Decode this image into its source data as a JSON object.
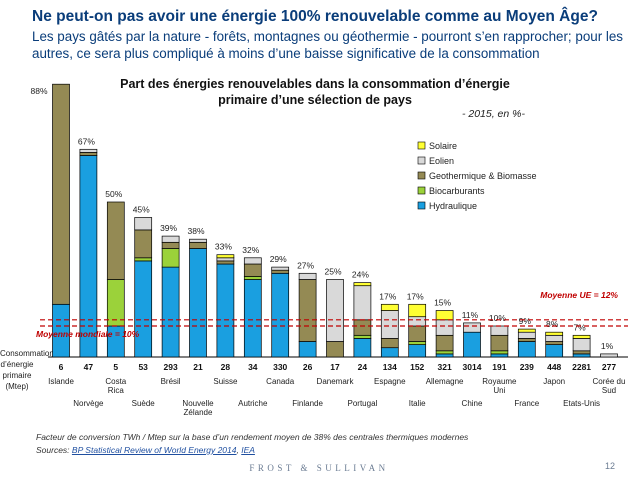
{
  "header": {
    "title": "Ne peut-on pas avoir une énergie 100% renouvelable comme au Moyen Âge?",
    "subtitle": "Les pays gâtés par la nature - forêts, montagnes ou géothermie - pourront s’en rapprocher; pour les autres, ce sera plus compliqué à moins d’une baisse significative de la consommation"
  },
  "colors": {
    "Hydraulique": "#1a9fe0",
    "Biocarburants": "#9bd23a",
    "Geothermique & Biomasse": "#948a54",
    "Eolien": "#d9d9d9",
    "Solaire": "#ffff33",
    "stroke": "#000000",
    "ref_line": "#c00000",
    "title_blue": "#0a3d7a"
  },
  "chart_data": {
    "type": "bar",
    "stacked": true,
    "title": "Part des énergies renouvelables dans la consommation d’énergie primaire d’une sélection de pays",
    "subtitle": "- 2015, en %-",
    "y_axis_title": "Consommation d’énergie primaire (Mtep)",
    "ylim": [
      0,
      90
    ],
    "legend_position": "top-right",
    "categories": [
      "Islande",
      "Norvège",
      "Costa Rica",
      "Suède",
      "Brésil",
      "Nouvelle Zélande",
      "Suisse",
      "Autriche",
      "Canada",
      "Finlande",
      "Danemark",
      "Portugal",
      "Espagne",
      "Italie",
      "Allemagne",
      "Chine",
      "Royaume Uni",
      "France",
      "Japon",
      "Etats-Unis",
      "Corée du Sud"
    ],
    "consumption_mtep": [
      "6",
      "47",
      "5",
      "53",
      "293",
      "21",
      "28",
      "34",
      "330",
      "26",
      "17",
      "24",
      "134",
      "152",
      "321",
      "3014",
      "191",
      "239",
      "448",
      "2281",
      "277"
    ],
    "totals": [
      88,
      67,
      50,
      45,
      39,
      38,
      33,
      32,
      29,
      27,
      25,
      24,
      17,
      17,
      15,
      11,
      10,
      9,
      8,
      7,
      1
    ],
    "total_labels": [
      "88%",
      "67%",
      "50%",
      "45%",
      "39%",
      "38%",
      "33%",
      "32%",
      "29%",
      "27%",
      "25%",
      "24%",
      "17%",
      "17%",
      "15%",
      "11%",
      "10%",
      "9%",
      "8%",
      "7%",
      "1%"
    ],
    "series": [
      {
        "name": "Hydraulique",
        "values": [
          17,
          65,
          10,
          31,
          29,
          35,
          30,
          25,
          27,
          5,
          0,
          6,
          3,
          4,
          1,
          8,
          1,
          5,
          4,
          1,
          0
        ]
      },
      {
        "name": "Biocarburants",
        "values": [
          0,
          0,
          15,
          1,
          6,
          0,
          0,
          1,
          0,
          0,
          0,
          1,
          0,
          1,
          1,
          0,
          1,
          0,
          0,
          0,
          0
        ]
      },
      {
        "name": "Geothermique & Biomasse",
        "values": [
          71,
          1,
          25,
          9,
          2,
          2,
          1,
          4,
          1,
          20,
          5,
          5,
          3,
          5,
          5,
          0,
          5,
          1,
          1,
          1,
          0
        ]
      },
      {
        "name": "Eolien",
        "values": [
          0,
          1,
          0,
          4,
          2,
          1,
          1,
          2,
          1,
          2,
          20,
          11,
          9,
          3,
          5,
          3,
          3,
          2,
          2,
          4,
          1
        ]
      },
      {
        "name": "Solaire",
        "values": [
          0,
          0,
          0,
          0,
          0,
          0,
          1,
          0,
          0,
          0,
          0,
          1,
          2,
          4,
          3,
          0,
          0,
          1,
          1,
          1,
          0
        ]
      }
    ],
    "legend_order": [
      "Solaire",
      "Eolien",
      "Geothermique & Biomasse",
      "Biocarburants",
      "Hydraulique"
    ],
    "reference_lines": [
      {
        "label": "Moyenne mondiale = 10%",
        "value": 10
      },
      {
        "label": "Moyenne UE = 12%",
        "value": 12
      }
    ]
  },
  "footer": {
    "footnote": "Facteur de conversion TWh / Mtep sur la base d’un rendement moyen de 38% des centrales thermiques modernes",
    "sources_label": "Sources:",
    "source_1": "BP Statistical Review of World Energy 2014",
    "source_sep": ", ",
    "source_2": "IEA",
    "brand": "FROST & SULLIVAN",
    "page_number": "12"
  }
}
